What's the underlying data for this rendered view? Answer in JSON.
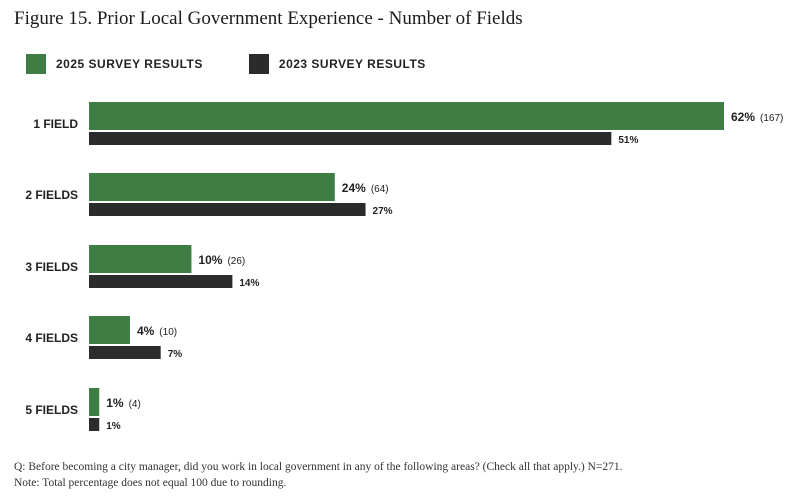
{
  "colors": {
    "series_2025": "#3e7d43",
    "series_2023": "#2b2b2b"
  },
  "chart_data": {
    "type": "bar",
    "orientation": "horizontal",
    "title": "Figure 15. Prior Local Government Experience - Number of Fields",
    "categories": [
      "1 FIELD",
      "2 FIELDS",
      "3 FIELDS",
      "4 FIELDS",
      "5 FIELDS"
    ],
    "series": [
      {
        "name": "2025 SURVEY RESULTS",
        "values": [
          62,
          24,
          10,
          4,
          1
        ],
        "value_labels": [
          "62%",
          "24%",
          "10%",
          "4%",
          "1%"
        ],
        "count_labels": [
          "(167)",
          "(64)",
          "(26)",
          "(10)",
          "(4)"
        ]
      },
      {
        "name": "2023 SURVEY RESULTS",
        "values": [
          51,
          27,
          14,
          7,
          1
        ],
        "value_labels": [
          "51%",
          "27%",
          "14%",
          "7%",
          "1%"
        ]
      }
    ],
    "xlim": [
      0,
      62
    ],
    "legend_position": "top-left"
  },
  "notes": {
    "question": "Q:  Before becoming a city manager, did you work in local government in any of the following areas? (Check all that apply.) N=271.",
    "note": "Note: Total percentage does not equal 100 due to rounding."
  }
}
